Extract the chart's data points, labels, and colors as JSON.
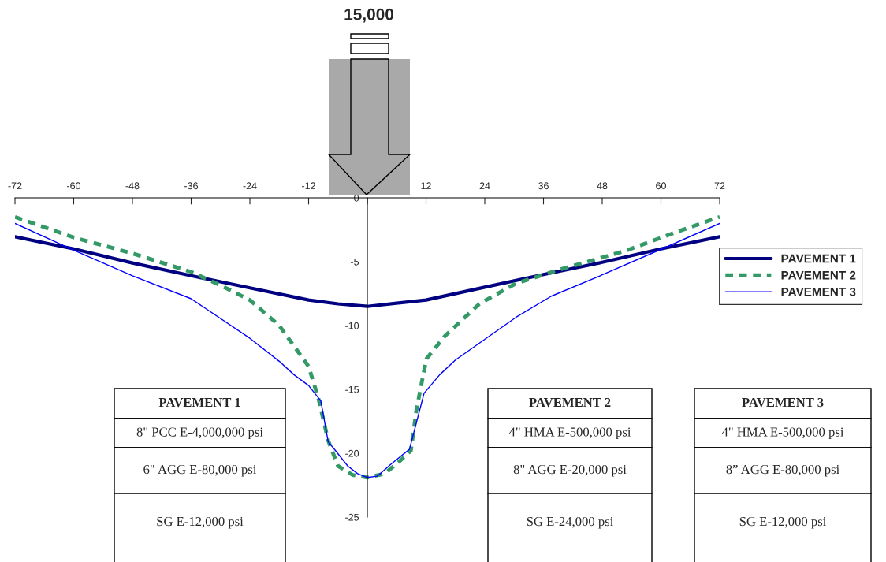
{
  "chart_data": {
    "type": "line",
    "xlim": [
      -72,
      72
    ],
    "ylim": [
      -25,
      0
    ],
    "xticks": [
      -72,
      -60,
      -48,
      -36,
      -24,
      -12,
      {
        "value": 0,
        "label": null
      },
      12,
      24,
      36,
      48,
      60,
      72
    ],
    "yticks": [
      -25,
      -20,
      -15,
      -10,
      -5,
      0
    ],
    "grid": false,
    "legend": "right",
    "marker": "none",
    "series": [
      {
        "name": "PAVEMENT 1",
        "color": "#000080",
        "line_style": "solid",
        "x": [
          -72,
          -60,
          -48,
          -36,
          -24,
          -12,
          -6,
          0,
          12,
          24,
          36,
          48,
          60,
          72
        ],
        "values": [
          -3.05,
          -4.0,
          -5.1,
          -6.1,
          -7.05,
          -8.0,
          -8.3,
          -8.5,
          -8.0,
          -7.0,
          -6.0,
          -5.05,
          -4.0,
          -3.05
        ]
      },
      {
        "name": "PAVEMENT 2",
        "color": "#339966",
        "line_style": "dashed",
        "x": [
          -72,
          -60,
          -48,
          -36,
          -30,
          -24,
          -18,
          -12,
          -10,
          -8,
          -6,
          -3,
          0,
          3.5,
          6.1,
          8.9,
          10,
          11.3,
          12.1,
          15.9,
          22.9,
          30.4,
          39.5,
          52.9,
          63.7,
          72
        ],
        "values": [
          -1.5,
          -3.1,
          -4.35,
          -5.8,
          -6.85,
          -8.0,
          -10.0,
          -13.2,
          -15.7,
          -19.0,
          -21.0,
          -21.7,
          -21.9,
          -21.6,
          -20.8,
          -19.8,
          -16.7,
          -14.1,
          -12.6,
          -10.8,
          -8.3,
          -6.7,
          -5.6,
          -4.13,
          -2.6,
          -1.5
        ]
      },
      {
        "name": "PAVEMENT 3",
        "color": "#0000ff",
        "line_style": "solid",
        "x": [
          -72,
          -60,
          -48,
          -36,
          -24,
          -18,
          -15,
          -12,
          -9.5,
          -8,
          -6.5,
          -4,
          -2,
          0,
          2,
          5,
          8.6,
          11.6,
          14.8,
          18.0,
          30.4,
          37.6,
          47.6,
          60.5,
          72
        ],
        "values": [
          -2.0,
          -4.1,
          -6.1,
          -7.9,
          -11.0,
          -12.8,
          -13.85,
          -14.7,
          -15.9,
          -19.1,
          -19.8,
          -21.0,
          -21.6,
          -21.9,
          -21.8,
          -20.8,
          -19.7,
          -15.3,
          -13.85,
          -12.7,
          -9.35,
          -7.7,
          -6.1,
          -3.95,
          -2.0
        ]
      }
    ],
    "annotations": [
      "15,000",
      "PAVEMENT 1",
      "8\" PCC E-4,000,000 psi",
      "6\" AGG E-80,000 psi",
      "SG E-12,000 psi",
      "PAVEMENT 2",
      "4\" HMA E-500,000 psi",
      "8\" AGG E-20,000 psi",
      "SG E-24,000 psi",
      "PAVEMENT 3",
      "4\" HMA E-500,000 psi",
      "8” AGG E-80,000 psi",
      "SG E-12,000 psi"
    ]
  }
}
